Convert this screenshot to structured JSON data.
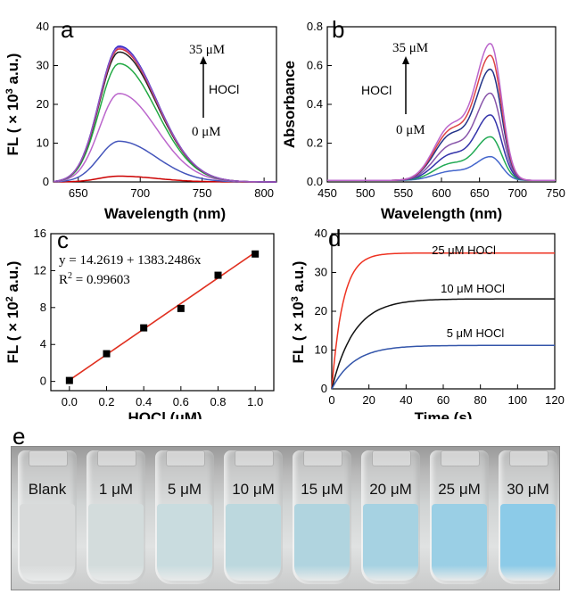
{
  "panels": {
    "a": {
      "letter": "a",
      "ylabel": "FL ( × 10",
      "ylabel_sup": "3",
      "ylabel_end": " a.u.)",
      "xlabel": "Wavelength (nm)",
      "annot_top": "35 μM",
      "annot_mid": "HOCl",
      "annot_bottom": "0 μM",
      "xticks": [
        "650",
        "700",
        "750",
        "800"
      ],
      "yticks": [
        "0",
        "10",
        "20",
        "30",
        "40"
      ]
    },
    "b": {
      "letter": "b",
      "ylabel": "Absorbance",
      "xlabel": "Wavelength (nm)",
      "annot_top": "35 μM",
      "annot_mid": "HOCl",
      "annot_bottom": "0 μM",
      "xticks": [
        "450",
        "500",
        "550",
        "600",
        "650",
        "700",
        "750"
      ],
      "yticks": [
        "0.0",
        "0.2",
        "0.4",
        "0.6",
        "0.8"
      ]
    },
    "c": {
      "letter": "c",
      "ylabel": "FL ( × 10",
      "ylabel_sup": "2",
      "ylabel_end": " a.u.)",
      "xlabel": "HOCl (μM)",
      "equation": "y = 14.2619 + 1383.2486x",
      "r2_label": "R",
      "r2_sup": "2",
      "r2_value": " = 0.99603",
      "xticks": [
        "0.0",
        "0.2",
        "0.4",
        "0.6",
        "0.8",
        "1.0"
      ],
      "yticks": [
        "0",
        "4",
        "8",
        "12",
        "16"
      ]
    },
    "d": {
      "letter": "d",
      "ylabel": "FL ( × 10",
      "ylabel_sup": "3",
      "ylabel_end": " a.u.)",
      "xlabel": "Time (s)",
      "xticks": [
        "0",
        "20",
        "40",
        "60",
        "80",
        "100",
        "120"
      ],
      "yticks": [
        "0",
        "10",
        "20",
        "30",
        "40"
      ]
    },
    "e": {
      "letter": "e"
    }
  },
  "chart_data": [
    {
      "type": "line",
      "panel": "a",
      "xlim": [
        630,
        810
      ],
      "ylim": [
        0,
        40
      ],
      "peak_x": 683,
      "series": [
        {
          "color": "#cc0000",
          "peak": 1.5
        },
        {
          "color": "#4455bb",
          "peak": 10.5
        },
        {
          "color": "#bb66cc",
          "peak": 22.8
        },
        {
          "color": "#22aa44",
          "peak": 30.5
        },
        {
          "color": "#222222",
          "peak": 33.5
        },
        {
          "color": "#dd3333",
          "peak": 34.3
        },
        {
          "color": "#2222cc",
          "peak": 35.0
        },
        {
          "color": "#9955bb",
          "peak": 34.7
        }
      ]
    },
    {
      "type": "line",
      "panel": "b",
      "xlim": [
        450,
        750
      ],
      "ylim": [
        0,
        0.8
      ],
      "peak_x": 665,
      "shoulder_x": 612,
      "series": [
        {
          "color": "#4466cc",
          "peak": 0.12,
          "shoulder": 0.06
        },
        {
          "color": "#22aa55",
          "peak": 0.22,
          "shoulder": 0.11
        },
        {
          "color": "#3333aa",
          "peak": 0.33,
          "shoulder": 0.17
        },
        {
          "color": "#8855aa",
          "peak": 0.44,
          "shoulder": 0.23
        },
        {
          "color": "#223388",
          "peak": 0.56,
          "shoulder": 0.3
        },
        {
          "color": "#dd4444",
          "peak": 0.63,
          "shoulder": 0.33
        },
        {
          "color": "#bb66cc",
          "peak": 0.69,
          "shoulder": 0.36
        }
      ]
    },
    {
      "type": "scatter",
      "panel": "c",
      "xlim": [
        -0.1,
        1.1
      ],
      "ylim": [
        -1,
        16
      ],
      "x": [
        0.0,
        0.2,
        0.4,
        0.6,
        0.8,
        1.0
      ],
      "y": [
        0.1,
        3.0,
        5.8,
        7.9,
        11.5,
        13.8
      ],
      "fit": {
        "intercept": 0.1426,
        "slope": 13.8325,
        "color": "#e03020"
      }
    },
    {
      "type": "line",
      "panel": "d",
      "xlim": [
        0,
        120
      ],
      "ylim": [
        0,
        40
      ],
      "series": [
        {
          "name": "25 μM HOCl",
          "color": "#ee3322",
          "plateau": 35.0,
          "tau": 6
        },
        {
          "name": "10 μM HOCl",
          "color": "#111111",
          "plateau": 23.2,
          "tau": 12
        },
        {
          "name": "5 μM HOCl",
          "color": "#3355aa",
          "plateau": 11.2,
          "tau": 12
        }
      ]
    }
  ],
  "vials": [
    {
      "label": "Blank",
      "color": "#d8dada"
    },
    {
      "label": "1 μM",
      "color": "#d3dcdc"
    },
    {
      "label": "5 μM",
      "color": "#c9dcdf"
    },
    {
      "label": "10 μM",
      "color": "#bcd8de"
    },
    {
      "label": "15 μM",
      "color": "#b0d4df"
    },
    {
      "label": "20 μM",
      "color": "#a6d2e2"
    },
    {
      "label": "25 μM",
      "color": "#9acfe5"
    },
    {
      "label": "30 μM",
      "color": "#8ccbe8"
    }
  ]
}
